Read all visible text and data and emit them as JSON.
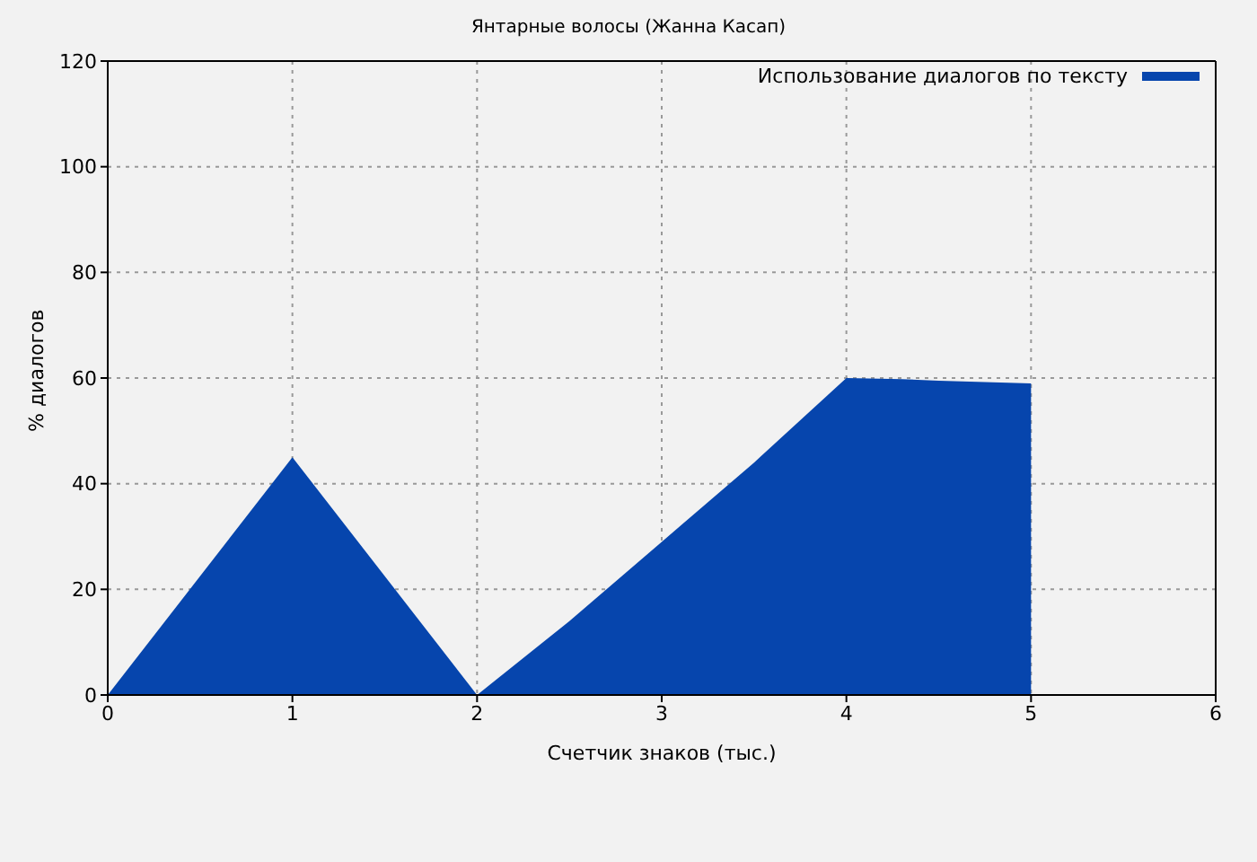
{
  "chart_data": {
    "type": "area",
    "title": "Янтарные волосы (Жанна Касап)",
    "xlabel": "Счетчик знаков (тыс.)",
    "ylabel": "% диалогов",
    "series": [
      {
        "name": "Использование диалогов по тексту",
        "color": "#0645ad",
        "x": [
          0,
          1,
          2,
          2.5,
          3,
          3.5,
          4,
          4.3,
          4.5,
          5
        ],
        "values": [
          0,
          45,
          0,
          14,
          29,
          44,
          60,
          59.8,
          59.5,
          59
        ]
      }
    ],
    "xlim": [
      0,
      6
    ],
    "xticks": [
      0,
      1,
      2,
      3,
      4,
      5,
      6
    ],
    "ylim": [
      0,
      120
    ],
    "yticks": [
      0,
      20,
      40,
      60,
      80,
      100,
      120
    ],
    "grid": true,
    "legend": "top right"
  }
}
